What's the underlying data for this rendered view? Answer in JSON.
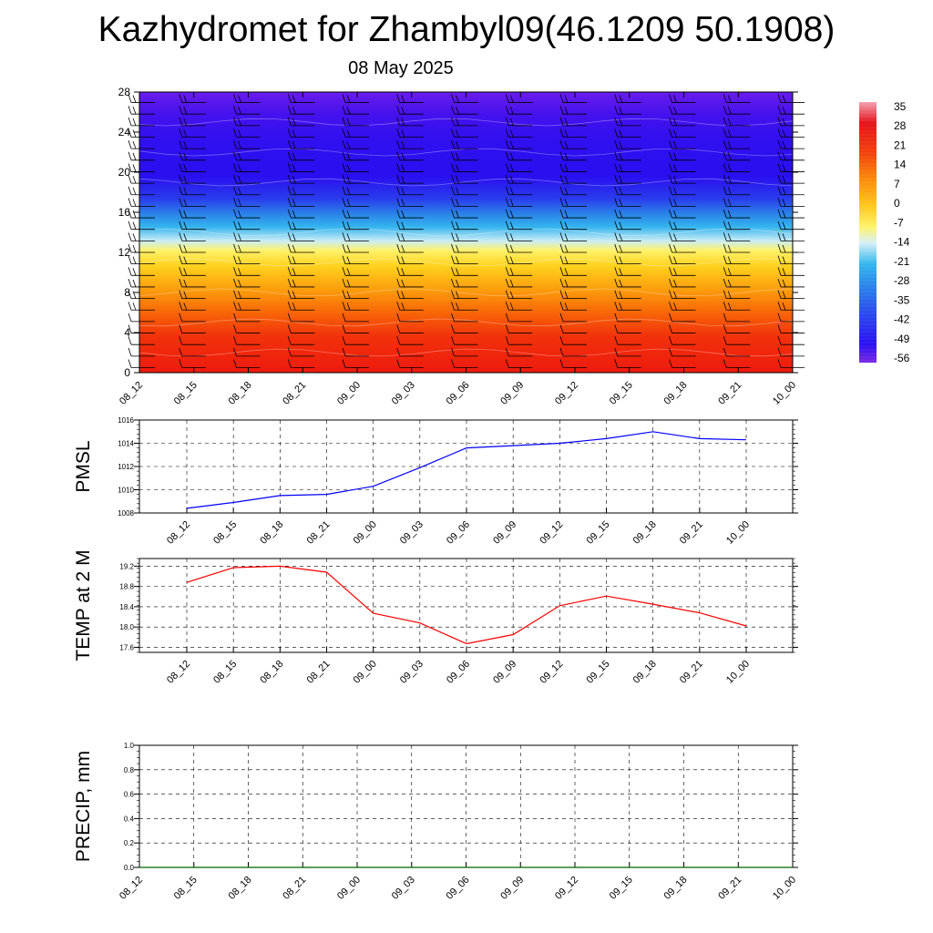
{
  "title": "Kazhydromet for Zhambyl09(46.1209 50.1908)",
  "date": "08 May 2025",
  "time_labels": [
    "08_12",
    "08_15",
    "08_18",
    "08_21",
    "09_00",
    "09_03",
    "09_06",
    "09_09",
    "09_12",
    "09_15",
    "09_18",
    "09_21",
    "10_00"
  ],
  "colors": {
    "pmsl_line": "#0000ff",
    "temp_line": "#ff0000",
    "precip_line": "#006400"
  },
  "chart_data": [
    {
      "type": "heatmap",
      "name": "temperature cross-section",
      "x": [
        "08_12",
        "08_15",
        "08_18",
        "08_21",
        "09_00",
        "09_03",
        "09_06",
        "09_09",
        "09_12",
        "09_15",
        "09_18",
        "09_21",
        "10_00"
      ],
      "yticks": [
        0,
        4,
        8,
        12,
        16,
        20,
        24,
        28
      ],
      "ylim": [
        0,
        28
      ],
      "colorbar": {
        "labels": [
          "35",
          "28",
          "21",
          "14",
          "7",
          "0",
          "-7",
          "-14",
          "-21",
          "-28",
          "-35",
          "-42",
          "-49",
          "-56"
        ],
        "range": [
          -60,
          37
        ]
      },
      "note_levels": "wind barbs overlaid",
      "profile": [
        {
          "level": 0,
          "value": 24
        },
        {
          "level": 4,
          "value": 20
        },
        {
          "level": 8,
          "value": 7
        },
        {
          "level": 12,
          "value": -8
        },
        {
          "level": 15,
          "value": -28
        },
        {
          "level": 18,
          "value": -52
        },
        {
          "level": 22,
          "value": -58
        },
        {
          "level": 28,
          "value": -55
        }
      ]
    },
    {
      "type": "line",
      "ylabel": "PMSL",
      "ylim": [
        1008,
        1016
      ],
      "yticks": [
        1008,
        1010,
        1012,
        1014,
        1016
      ],
      "x": [
        "08_12",
        "08_15",
        "08_18",
        "08_21",
        "09_00",
        "09_03",
        "09_06",
        "09_09",
        "09_12",
        "09_15",
        "09_18",
        "09_21",
        "10_00"
      ],
      "values": [
        1008.4,
        1008.9,
        1009.5,
        1009.6,
        1010.3,
        1011.9,
        1013.6,
        1013.8,
        1014.0,
        1014.4,
        1015.0,
        1014.4,
        1014.3
      ],
      "grid": true
    },
    {
      "type": "line",
      "ylabel": "TEMP at 2 M",
      "ylim": [
        17.5,
        19.35
      ],
      "yticks": [
        17.6,
        18.0,
        18.4,
        18.8,
        19.2
      ],
      "x": [
        "08_12",
        "08_15",
        "08_18",
        "08_21",
        "09_00",
        "09_03",
        "09_06",
        "09_09",
        "09_12",
        "09_15",
        "09_18",
        "09_21",
        "10_00"
      ],
      "values": [
        18.88,
        19.17,
        19.2,
        19.08,
        18.27,
        18.08,
        17.67,
        17.85,
        18.42,
        18.61,
        18.45,
        18.28,
        18.02
      ],
      "grid": true
    },
    {
      "type": "line",
      "ylabel": "PRECIP, mm",
      "ylim": [
        0.0,
        1.0
      ],
      "yticks": [
        0.0,
        0.2,
        0.4,
        0.6,
        0.8,
        1.0
      ],
      "x": [
        "08_12",
        "08_15",
        "08_18",
        "08_21",
        "09_00",
        "09_03",
        "09_06",
        "09_09",
        "09_12",
        "09_15",
        "09_18",
        "09_21",
        "10_00"
      ],
      "values": [
        0,
        0,
        0,
        0,
        0,
        0,
        0,
        0,
        0,
        0,
        0,
        0,
        0
      ],
      "grid": true
    }
  ]
}
